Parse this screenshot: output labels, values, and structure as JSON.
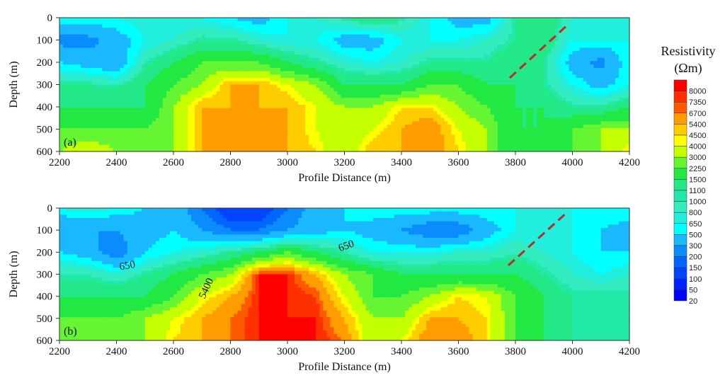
{
  "chart_data": [
    {
      "type": "heatmap",
      "panel_label": "(a)",
      "xlabel": "Profile Distance (m)",
      "ylabel": "Depth (m)",
      "xlim": [
        2200,
        4200
      ],
      "ylim": [
        600,
        0
      ],
      "xticks": [
        2200,
        2400,
        2600,
        2800,
        3000,
        3200,
        3400,
        3600,
        3800,
        4000,
        4200
      ],
      "yticks": [
        0,
        100,
        200,
        300,
        400,
        500,
        600
      ],
      "x": [
        2200,
        2300,
        2400,
        2500,
        2600,
        2700,
        2800,
        2900,
        3000,
        3100,
        3200,
        3300,
        3400,
        3500,
        3600,
        3700,
        3800,
        3900,
        4000,
        4100,
        4200
      ],
      "depth": [
        0,
        100,
        200,
        300,
        400,
        500,
        600
      ],
      "values": [
        [
          650,
          650,
          650,
          800,
          650,
          650,
          500,
          400,
          650,
          800,
          1100,
          1500,
          1100,
          650,
          400,
          400,
          1100,
          1500,
          800,
          650,
          650
        ],
        [
          250,
          250,
          400,
          650,
          800,
          1100,
          1100,
          800,
          650,
          650,
          400,
          400,
          650,
          650,
          650,
          800,
          1100,
          1500,
          650,
          650,
          650
        ],
        [
          500,
          400,
          300,
          1000,
          1500,
          2250,
          2250,
          2250,
          1500,
          1100,
          800,
          650,
          800,
          1100,
          1100,
          1100,
          1500,
          1100,
          400,
          250,
          650
        ],
        [
          1100,
          1100,
          1000,
          1500,
          2250,
          3000,
          5400,
          5400,
          4000,
          3000,
          1500,
          1500,
          1500,
          2250,
          2250,
          1500,
          1500,
          1100,
          650,
          400,
          650
        ],
        [
          1500,
          1500,
          1500,
          1500,
          3000,
          5400,
          5400,
          5400,
          5400,
          4000,
          3000,
          3000,
          4500,
          4500,
          3000,
          2250,
          1500,
          1500,
          1100,
          1100,
          1500
        ],
        [
          2250,
          2250,
          2250,
          2250,
          3000,
          5400,
          5400,
          5400,
          5400,
          4000,
          3000,
          4000,
          5400,
          6700,
          4000,
          3000,
          1500,
          1500,
          2250,
          3000,
          3000
        ],
        [
          3000,
          4000,
          3000,
          2250,
          3000,
          5400,
          5400,
          5400,
          5400,
          4500,
          3000,
          5400,
          5400,
          6700,
          4500,
          3000,
          1500,
          2250,
          2250,
          3000,
          4500
        ]
      ],
      "fault_line": [
        [
          3780,
          270
        ],
        [
          3985,
          30
        ]
      ],
      "fault_color": "#c0282d",
      "contour_labels": []
    },
    {
      "type": "heatmap",
      "panel_label": "(b)",
      "xlabel": "Profile Distance (m)",
      "ylabel": "Depth (m)",
      "xlim": [
        2200,
        4200
      ],
      "ylim": [
        600,
        0
      ],
      "xticks": [
        2200,
        2400,
        2600,
        2800,
        3000,
        3200,
        3400,
        3600,
        3800,
        4000,
        4200
      ],
      "yticks": [
        0,
        100,
        200,
        300,
        400,
        500,
        600
      ],
      "x": [
        2200,
        2300,
        2400,
        2500,
        2600,
        2700,
        2800,
        2900,
        3000,
        3100,
        3200,
        3300,
        3400,
        3500,
        3600,
        3700,
        3800,
        3900,
        4000,
        4100,
        4200
      ],
      "depth": [
        0,
        100,
        200,
        300,
        400,
        500,
        600
      ],
      "values": [
        [
          650,
          800,
          650,
          500,
          400,
          200,
          100,
          100,
          200,
          400,
          500,
          650,
          650,
          650,
          650,
          650,
          650,
          650,
          650,
          650,
          650
        ],
        [
          300,
          300,
          300,
          400,
          500,
          300,
          200,
          200,
          300,
          400,
          500,
          400,
          300,
          200,
          200,
          400,
          650,
          650,
          650,
          500,
          400
        ],
        [
          500,
          400,
          200,
          500,
          650,
          800,
          1100,
          1500,
          2250,
          1500,
          1000,
          650,
          650,
          650,
          800,
          800,
          1000,
          800,
          650,
          500,
          500
        ],
        [
          1000,
          1000,
          800,
          1100,
          1500,
          2250,
          3000,
          8000,
          8000,
          5400,
          3000,
          2250,
          1500,
          1500,
          1500,
          1500,
          1500,
          1100,
          800,
          650,
          800
        ],
        [
          1500,
          1500,
          1500,
          1500,
          2250,
          4000,
          5400,
          8000,
          8000,
          7350,
          4000,
          2250,
          2250,
          3000,
          4500,
          4000,
          2250,
          1500,
          1100,
          1100,
          1100
        ],
        [
          2250,
          2250,
          2250,
          3000,
          4000,
          5400,
          6700,
          8000,
          8000,
          8000,
          5400,
          3000,
          3000,
          5400,
          5400,
          4500,
          2250,
          1500,
          1100,
          1000,
          1100
        ],
        [
          2250,
          2250,
          2250,
          3000,
          4500,
          5400,
          6700,
          8000,
          8000,
          8000,
          6700,
          3000,
          4000,
          6700,
          6700,
          4500,
          2250,
          1500,
          1100,
          1000,
          1000
        ]
      ],
      "fault_line": [
        [
          3775,
          260
        ],
        [
          3985,
          15
        ]
      ],
      "fault_color": "#c0282d",
      "contour_labels": [
        {
          "text": "650",
          "x": 3210,
          "depth": 185,
          "angle": -20
        },
        {
          "text": "650",
          "x": 2440,
          "depth": 275,
          "angle": -10
        },
        {
          "text": "5400",
          "x": 2725,
          "depth": 370,
          "angle": -65
        }
      ]
    }
  ],
  "colorbar": {
    "title": "Resistivity",
    "unit": "(Ωm)",
    "levels": [
      "8000",
      "7350",
      "6700",
      "5400",
      "4500",
      "4000",
      "3000",
      "2250",
      "1500",
      "1100",
      "1000",
      "800",
      "650",
      "500",
      "300",
      "200",
      "150",
      "100",
      "50",
      "20"
    ],
    "level_values": [
      8000,
      7350,
      6700,
      5400,
      4500,
      4000,
      3000,
      2250,
      1500,
      1100,
      1000,
      800,
      650,
      500,
      300,
      200,
      150,
      100,
      50,
      20
    ],
    "colors": [
      "#ff0000",
      "#ff3000",
      "#ff5a00",
      "#ff9c00",
      "#ffcc00",
      "#ffff00",
      "#c4ff00",
      "#66f533",
      "#22e844",
      "#22e888",
      "#22e8a8",
      "#33ecc0",
      "#22eedd",
      "#00ffff",
      "#1ab8ff",
      "#0a8cff",
      "#0066ff",
      "#0044ff",
      "#0022ff",
      "#0000ff"
    ]
  }
}
